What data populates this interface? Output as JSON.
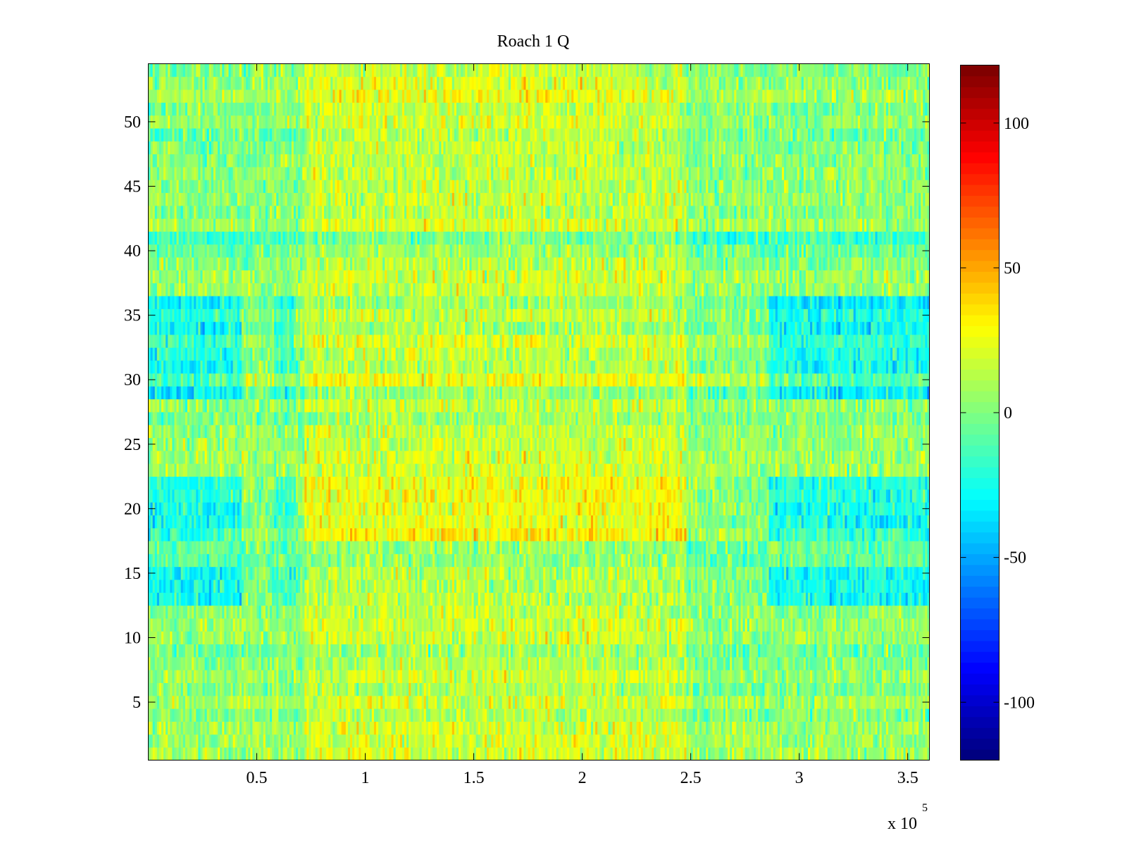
{
  "chart_data": {
    "type": "heatmap",
    "title": "Roach 1 Q",
    "xlabel": "",
    "ylabel": "",
    "x_multiplier": "x 10",
    "x_multiplier_exponent": "5",
    "xlim": [
      0,
      360000
    ],
    "ylim": [
      0.5,
      54.5
    ],
    "rows": 54,
    "columns": 360,
    "x_ticks": [
      {
        "value": 50000,
        "label": "0.5"
      },
      {
        "value": 100000,
        "label": "1"
      },
      {
        "value": 150000,
        "label": "1.5"
      },
      {
        "value": 200000,
        "label": "2"
      },
      {
        "value": 250000,
        "label": "2.5"
      },
      {
        "value": 300000,
        "label": "3"
      },
      {
        "value": 350000,
        "label": "3.5"
      }
    ],
    "y_ticks": [
      {
        "value": 5,
        "label": "5"
      },
      {
        "value": 10,
        "label": "10"
      },
      {
        "value": 15,
        "label": "15"
      },
      {
        "value": 20,
        "label": "20"
      },
      {
        "value": 25,
        "label": "25"
      },
      {
        "value": 30,
        "label": "30"
      },
      {
        "value": 35,
        "label": "35"
      },
      {
        "value": 40,
        "label": "40"
      },
      {
        "value": 45,
        "label": "45"
      },
      {
        "value": 50,
        "label": "50"
      }
    ],
    "colorbar": {
      "colormap": "jet",
      "clim": [
        -120,
        120
      ],
      "ticks": [
        {
          "value": 100,
          "label": "100"
        },
        {
          "value": 50,
          "label": "50"
        },
        {
          "value": 0,
          "label": "0"
        },
        {
          "value": -50,
          "label": "-50"
        },
        {
          "value": -100,
          "label": "-100"
        }
      ]
    },
    "grid": false
  }
}
